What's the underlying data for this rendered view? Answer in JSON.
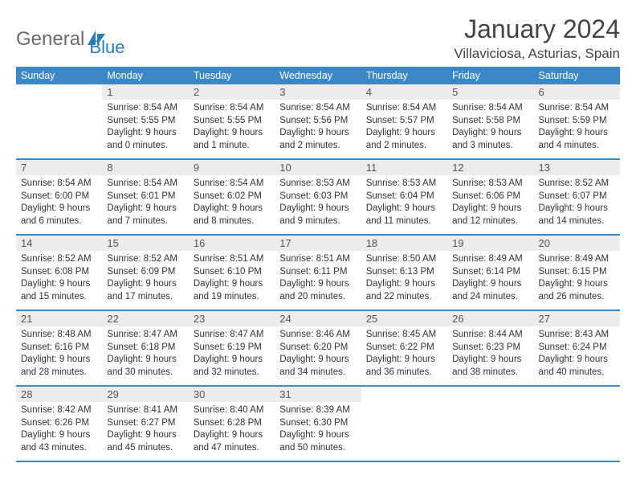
{
  "brand": {
    "name_gray": "General",
    "name_blue": "Blue"
  },
  "header": {
    "title": "January 2024",
    "location": "Villaviciosa, Asturias, Spain"
  },
  "colors": {
    "accent": "#3b87c8",
    "daynum_bg": "#ececec",
    "text": "#333333"
  },
  "weekdays": [
    "Sunday",
    "Monday",
    "Tuesday",
    "Wednesday",
    "Thursday",
    "Friday",
    "Saturday"
  ],
  "layout": {
    "first_day_column": 1,
    "weeks": 5,
    "cols": 7
  },
  "days": [
    {
      "n": 1,
      "sunrise": "8:54 AM",
      "sunset": "5:55 PM",
      "daylight": "9 hours and 0 minutes."
    },
    {
      "n": 2,
      "sunrise": "8:54 AM",
      "sunset": "5:55 PM",
      "daylight": "9 hours and 1 minute."
    },
    {
      "n": 3,
      "sunrise": "8:54 AM",
      "sunset": "5:56 PM",
      "daylight": "9 hours and 2 minutes."
    },
    {
      "n": 4,
      "sunrise": "8:54 AM",
      "sunset": "5:57 PM",
      "daylight": "9 hours and 2 minutes."
    },
    {
      "n": 5,
      "sunrise": "8:54 AM",
      "sunset": "5:58 PM",
      "daylight": "9 hours and 3 minutes."
    },
    {
      "n": 6,
      "sunrise": "8:54 AM",
      "sunset": "5:59 PM",
      "daylight": "9 hours and 4 minutes."
    },
    {
      "n": 7,
      "sunrise": "8:54 AM",
      "sunset": "6:00 PM",
      "daylight": "9 hours and 6 minutes."
    },
    {
      "n": 8,
      "sunrise": "8:54 AM",
      "sunset": "6:01 PM",
      "daylight": "9 hours and 7 minutes."
    },
    {
      "n": 9,
      "sunrise": "8:54 AM",
      "sunset": "6:02 PM",
      "daylight": "9 hours and 8 minutes."
    },
    {
      "n": 10,
      "sunrise": "8:53 AM",
      "sunset": "6:03 PM",
      "daylight": "9 hours and 9 minutes."
    },
    {
      "n": 11,
      "sunrise": "8:53 AM",
      "sunset": "6:04 PM",
      "daylight": "9 hours and 11 minutes."
    },
    {
      "n": 12,
      "sunrise": "8:53 AM",
      "sunset": "6:06 PM",
      "daylight": "9 hours and 12 minutes."
    },
    {
      "n": 13,
      "sunrise": "8:52 AM",
      "sunset": "6:07 PM",
      "daylight": "9 hours and 14 minutes."
    },
    {
      "n": 14,
      "sunrise": "8:52 AM",
      "sunset": "6:08 PM",
      "daylight": "9 hours and 15 minutes."
    },
    {
      "n": 15,
      "sunrise": "8:52 AM",
      "sunset": "6:09 PM",
      "daylight": "9 hours and 17 minutes."
    },
    {
      "n": 16,
      "sunrise": "8:51 AM",
      "sunset": "6:10 PM",
      "daylight": "9 hours and 19 minutes."
    },
    {
      "n": 17,
      "sunrise": "8:51 AM",
      "sunset": "6:11 PM",
      "daylight": "9 hours and 20 minutes."
    },
    {
      "n": 18,
      "sunrise": "8:50 AM",
      "sunset": "6:13 PM",
      "daylight": "9 hours and 22 minutes."
    },
    {
      "n": 19,
      "sunrise": "8:49 AM",
      "sunset": "6:14 PM",
      "daylight": "9 hours and 24 minutes."
    },
    {
      "n": 20,
      "sunrise": "8:49 AM",
      "sunset": "6:15 PM",
      "daylight": "9 hours and 26 minutes."
    },
    {
      "n": 21,
      "sunrise": "8:48 AM",
      "sunset": "6:16 PM",
      "daylight": "9 hours and 28 minutes."
    },
    {
      "n": 22,
      "sunrise": "8:47 AM",
      "sunset": "6:18 PM",
      "daylight": "9 hours and 30 minutes."
    },
    {
      "n": 23,
      "sunrise": "8:47 AM",
      "sunset": "6:19 PM",
      "daylight": "9 hours and 32 minutes."
    },
    {
      "n": 24,
      "sunrise": "8:46 AM",
      "sunset": "6:20 PM",
      "daylight": "9 hours and 34 minutes."
    },
    {
      "n": 25,
      "sunrise": "8:45 AM",
      "sunset": "6:22 PM",
      "daylight": "9 hours and 36 minutes."
    },
    {
      "n": 26,
      "sunrise": "8:44 AM",
      "sunset": "6:23 PM",
      "daylight": "9 hours and 38 minutes."
    },
    {
      "n": 27,
      "sunrise": "8:43 AM",
      "sunset": "6:24 PM",
      "daylight": "9 hours and 40 minutes."
    },
    {
      "n": 28,
      "sunrise": "8:42 AM",
      "sunset": "6:26 PM",
      "daylight": "9 hours and 43 minutes."
    },
    {
      "n": 29,
      "sunrise": "8:41 AM",
      "sunset": "6:27 PM",
      "daylight": "9 hours and 45 minutes."
    },
    {
      "n": 30,
      "sunrise": "8:40 AM",
      "sunset": "6:28 PM",
      "daylight": "9 hours and 47 minutes."
    },
    {
      "n": 31,
      "sunrise": "8:39 AM",
      "sunset": "6:30 PM",
      "daylight": "9 hours and 50 minutes."
    }
  ],
  "labels": {
    "sunrise": "Sunrise:",
    "sunset": "Sunset:",
    "daylight": "Daylight:"
  }
}
